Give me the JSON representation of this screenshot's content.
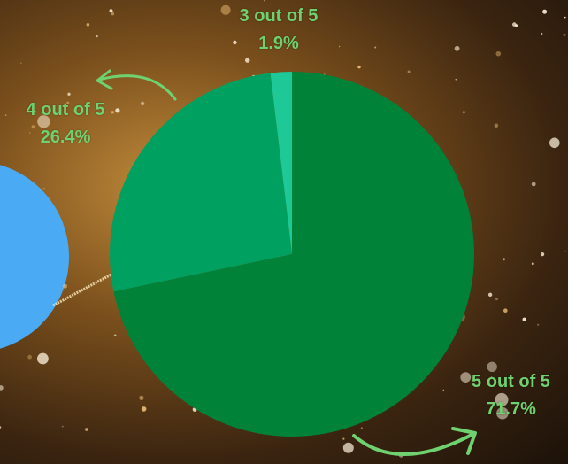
{
  "colors": {
    "label_text": "#6fd16f",
    "arrow": "#6fd16f",
    "slice_5": "#008238",
    "slice_4": "#00a060",
    "slice_3": "#1ec997",
    "left_circle": "#4aaaf4"
  },
  "chart_data": {
    "type": "pie",
    "title": "",
    "slices": [
      {
        "label": "3 out of 5",
        "value": 1.9,
        "value_text": "1.9%",
        "color": "#1ec997"
      },
      {
        "label": "4 out of 5",
        "value": 26.4,
        "value_text": "26.4%",
        "color": "#00a060"
      },
      {
        "label": "5 out of 5",
        "value": 71.7,
        "value_text": "71.7%",
        "color": "#008238"
      }
    ]
  }
}
